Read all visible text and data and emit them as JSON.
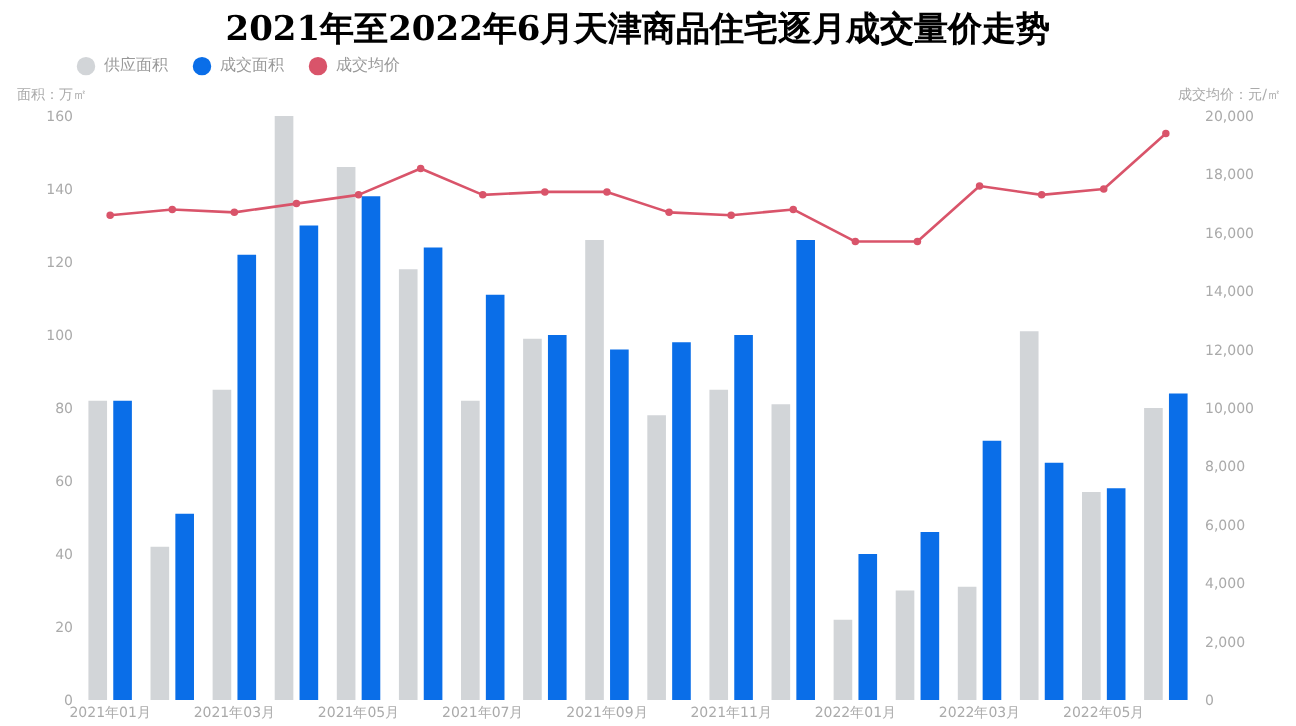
{
  "chart_data": {
    "type": "bar",
    "title": "2021年至2022年6月天津商品住宅逐月成交量价走势",
    "ylabel": "面积：万㎡",
    "y2label": "成交均价：元/㎡",
    "categories": [
      "2021年01月",
      null,
      "2021年03月",
      null,
      "2021年05月",
      null,
      "2021年07月",
      null,
      "2021年09月",
      null,
      "2021年11月",
      null,
      "2022年01月",
      null,
      "2022年03月",
      null,
      "2022年05月",
      null
    ],
    "series": [
      {
        "name": "供应面积",
        "color": "#d2d5d8",
        "values": [
          82,
          42,
          85,
          160,
          146,
          118,
          82,
          99,
          126,
          78,
          85,
          81,
          22,
          30,
          31,
          101,
          57,
          80
        ]
      },
      {
        "name": "成交面积",
        "color": "#0a6ee8",
        "values": [
          82,
          51,
          122,
          130,
          138,
          124,
          111,
          100,
          96,
          98,
          100,
          126,
          40,
          46,
          71,
          65,
          58,
          84
        ]
      },
      {
        "name": "成交均价",
        "type": "line",
        "axis": "y2",
        "color": "#d9546a",
        "marker": "circle",
        "values": [
          16600,
          16800,
          16700,
          17000,
          17300,
          18200,
          17300,
          17400,
          17400,
          16700,
          16600,
          16800,
          15700,
          15700,
          17600,
          17300,
          17500,
          19400
        ]
      }
    ],
    "ylim": [
      0,
      160
    ],
    "yticks": [
      0,
      20,
      40,
      60,
      80,
      100,
      120,
      140,
      160
    ],
    "y2lim": [
      0,
      20000
    ],
    "y2ticks": [
      0,
      {
        "value": 2000,
        "label": "2,000"
      },
      {
        "value": 4000,
        "label": "4,000"
      },
      {
        "value": 6000,
        "label": "6,000"
      },
      {
        "value": 8000,
        "label": "8,000"
      },
      {
        "value": 10000,
        "label": "10,000"
      },
      {
        "value": 12000,
        "label": "12,000"
      },
      {
        "value": 14000,
        "label": "14,000"
      },
      {
        "value": 16000,
        "label": "16,000"
      },
      {
        "value": 18000,
        "label": "18,000"
      },
      {
        "value": 20000,
        "label": "20,000"
      }
    ],
    "legend": "top"
  }
}
